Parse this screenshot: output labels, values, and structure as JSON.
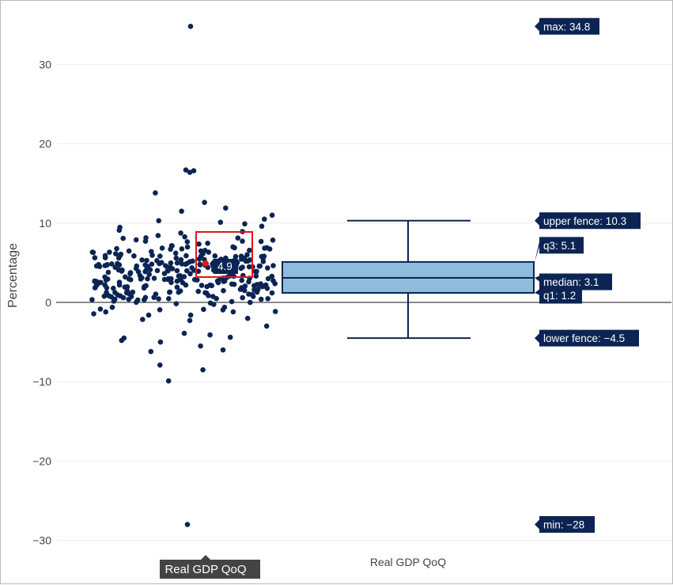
{
  "chart_data": {
    "type": "box",
    "title": "",
    "ylabel": "Percentage",
    "xlabel": "",
    "ylim": [
      -31.5,
      36.5
    ],
    "yticks": [
      30,
      20,
      10,
      0,
      -10,
      -20,
      -30
    ],
    "ytick_labels": [
      "30",
      "20",
      "10",
      "0",
      "−10",
      "−20",
      "−30"
    ],
    "grid": true,
    "series": [
      {
        "name": "Real GDP QoQ",
        "category_label": "Real GDP QoQ",
        "stats": {
          "max": 34.8,
          "upper_fence": 10.3,
          "q3": 5.1,
          "median": 3.1,
          "q1": 1.2,
          "lower_fence": -4.5,
          "min": -28
        },
        "fill_color": "#8fbcdc",
        "line_color": "#0b2453",
        "point_color": "#0b2453",
        "selected_point": {
          "value": 4.9,
          "color": "#e0161b"
        }
      }
    ],
    "box_annotations": [
      {
        "key": "max",
        "text": "max: 34.8"
      },
      {
        "key": "upper_fence",
        "text": "upper fence: 10.3"
      },
      {
        "key": "q3",
        "text": "q3: 5.1"
      },
      {
        "key": "median",
        "text": "median: 3.1"
      },
      {
        "key": "q1",
        "text": "q1: 1.2"
      },
      {
        "key": "lower_fence",
        "text": "lower fence: −4.5"
      },
      {
        "key": "min",
        "text": "min: −28"
      }
    ],
    "point_label": "4.9",
    "hover_x_label": "Real GDP QoQ",
    "category_axis_label": "Real GDP QoQ"
  }
}
